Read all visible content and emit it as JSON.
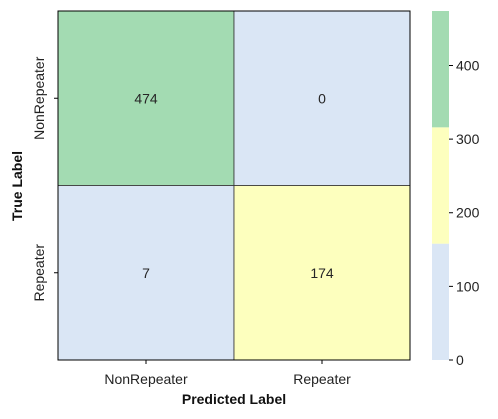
{
  "chart_data": {
    "type": "heatmap",
    "title": "",
    "xlabel": "Predicted Label",
    "ylabel": "True Label",
    "x_categories": [
      "NonRepeater",
      "Repeater"
    ],
    "y_categories": [
      "NonRepeater",
      "Repeater"
    ],
    "values": [
      [
        474,
        0
      ],
      [
        7,
        174
      ]
    ],
    "value_range": [
      0,
      474
    ],
    "colorbar": {
      "ticks": [
        0,
        100,
        200,
        300,
        400
      ],
      "tick_labels": [
        "0",
        "100",
        "200",
        "300",
        "400"
      ],
      "bands": [
        {
          "from": 0,
          "to": 158,
          "color": "#dae6f5"
        },
        {
          "from": 158,
          "to": 316,
          "color": "#fdffbe"
        },
        {
          "from": 316,
          "to": 474,
          "color": "#a3dbb2"
        }
      ]
    },
    "grid": false,
    "colors": {
      "cell_border": "#333333",
      "frame": "#000000",
      "text": "#262626"
    }
  }
}
